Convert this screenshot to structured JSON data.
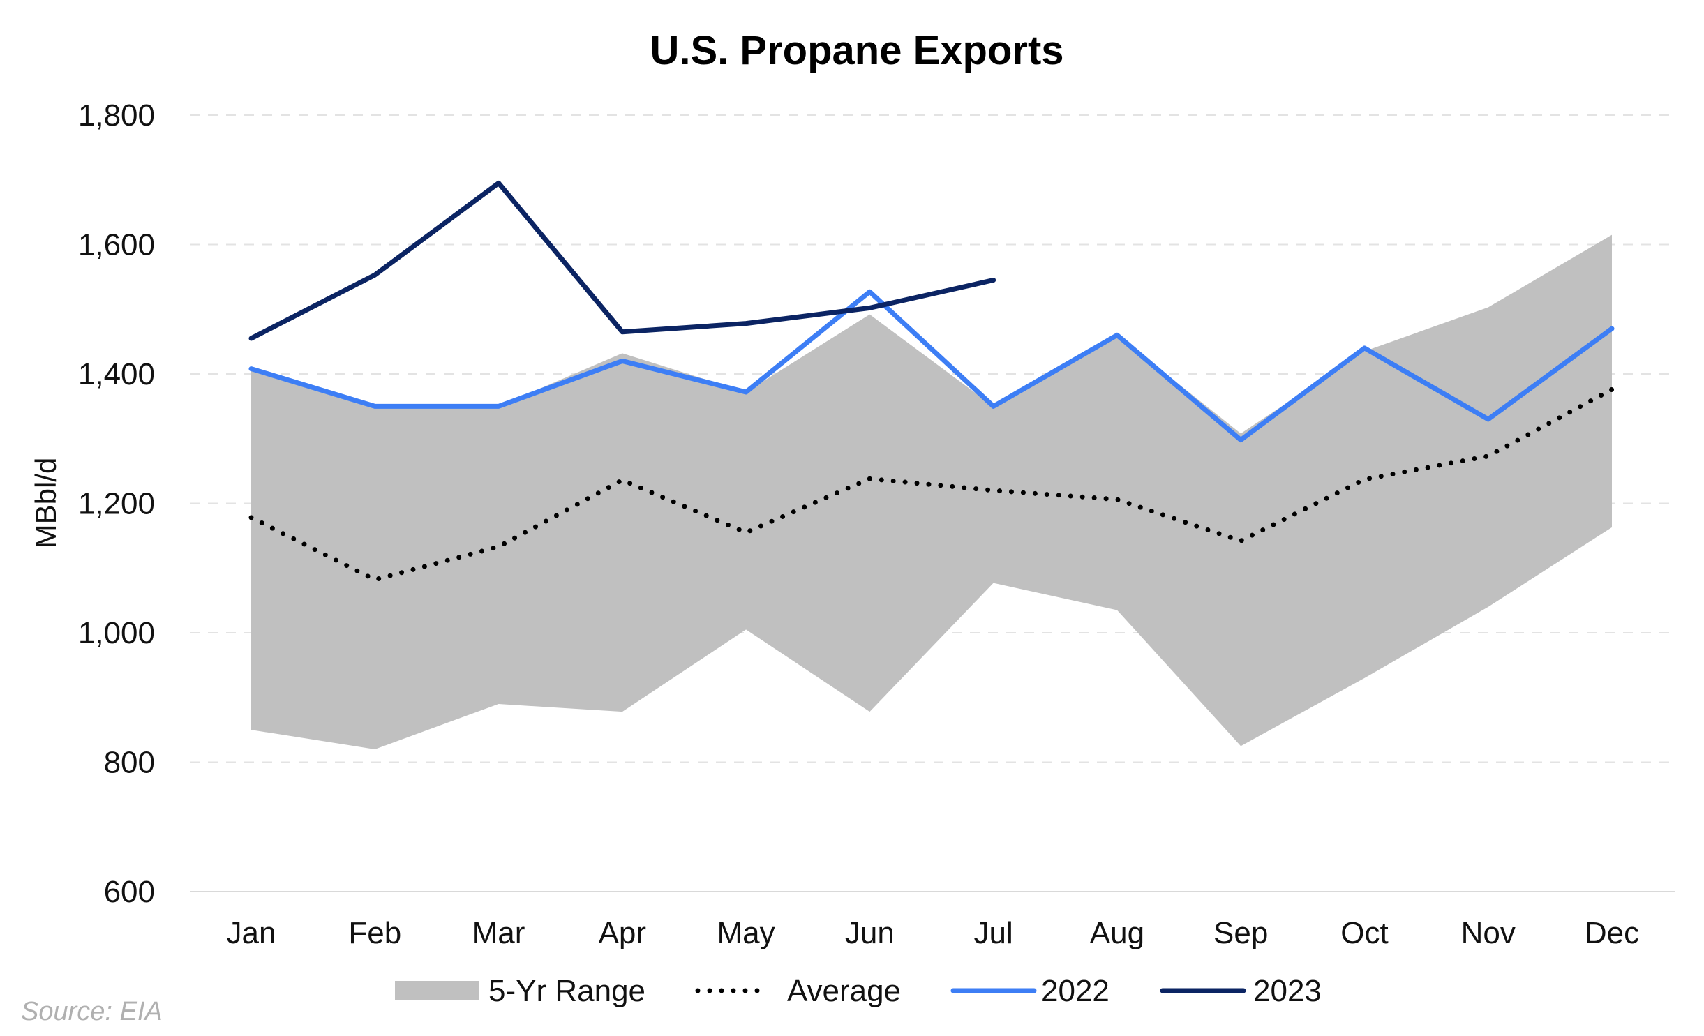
{
  "chart_data": {
    "type": "line",
    "title": "U.S. Propane Exports",
    "xlabel": "",
    "ylabel": "MBbl/d",
    "ylim": [
      600,
      1800
    ],
    "yticks": [
      600,
      800,
      1000,
      1200,
      1400,
      1600,
      1800
    ],
    "ytick_labels": [
      "600",
      "800",
      "1,000",
      "1,200",
      "1,400",
      "1,600",
      "1,800"
    ],
    "categories": [
      "Jan",
      "Feb",
      "Mar",
      "Apr",
      "May",
      "Jun",
      "Jul",
      "Aug",
      "Sep",
      "Oct",
      "Nov",
      "Dec"
    ],
    "grid": "horizontal dashed",
    "legend_position": "bottom",
    "range": {
      "name": "5-Yr Range",
      "color": "#c0c0c0",
      "min": [
        850,
        820,
        890,
        878,
        1005,
        878,
        1077,
        1035,
        825,
        930,
        1040,
        1163
      ],
      "max": [
        1405,
        1350,
        1350,
        1432,
        1372,
        1492,
        1350,
        1460,
        1308,
        1435,
        1503,
        1615
      ]
    },
    "series": [
      {
        "name": "Average",
        "color": "#000000",
        "style": "dotted",
        "values": [
          1178,
          1082,
          1133,
          1236,
          1155,
          1238,
          1220,
          1206,
          1142,
          1237,
          1273,
          1376
        ]
      },
      {
        "name": "2022",
        "color": "#3d7ef5",
        "style": "solid",
        "values": [
          1408,
          1350,
          1350,
          1420,
          1372,
          1527,
          1350,
          1460,
          1298,
          1440,
          1330,
          1470
        ]
      },
      {
        "name": "2023",
        "color": "#0b2463",
        "style": "solid",
        "values": [
          1455,
          1553,
          1695,
          1465,
          1478,
          1502,
          1545,
          null,
          null,
          null,
          null,
          null
        ]
      }
    ]
  },
  "source_note": "Source: EIA"
}
